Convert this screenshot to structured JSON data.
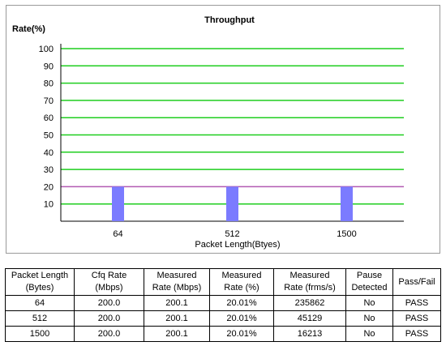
{
  "chart_data": {
    "type": "bar",
    "title": "Throughput",
    "ylabel": "Rate(%)",
    "xlabel": "Packet Length(Btyes)",
    "categories": [
      "64",
      "512",
      "1500"
    ],
    "values": [
      20,
      20,
      20
    ],
    "ylim": [
      0,
      100
    ],
    "yticks": [
      "10",
      "20",
      "30",
      "40",
      "50",
      "60",
      "70",
      "80",
      "90",
      "100"
    ],
    "grid": true,
    "grid_color": "#1fce1f",
    "threshold_line": 20,
    "threshold_color": "#b25ab2",
    "bar_color": "#7b7bff"
  },
  "table": {
    "headers": [
      [
        "Packet Length",
        "(Bytes)"
      ],
      [
        "Cfq Rate",
        "(Mbps)"
      ],
      [
        "Measured",
        "Rate (Mbps)"
      ],
      [
        "Measured",
        "Rate (%)"
      ],
      [
        "Measured",
        "Rate (frms/s)"
      ],
      [
        "Pause",
        "Detected"
      ],
      [
        "Pass/Fail"
      ]
    ],
    "rows": [
      [
        "64",
        "200.0",
        "200.1",
        "20.01%",
        "235862",
        "No",
        "PASS"
      ],
      [
        "512",
        "200.0",
        "200.1",
        "20.01%",
        "45129",
        "No",
        "PASS"
      ],
      [
        "1500",
        "200.0",
        "200.1",
        "20.01%",
        "16213",
        "No",
        "PASS"
      ]
    ]
  }
}
